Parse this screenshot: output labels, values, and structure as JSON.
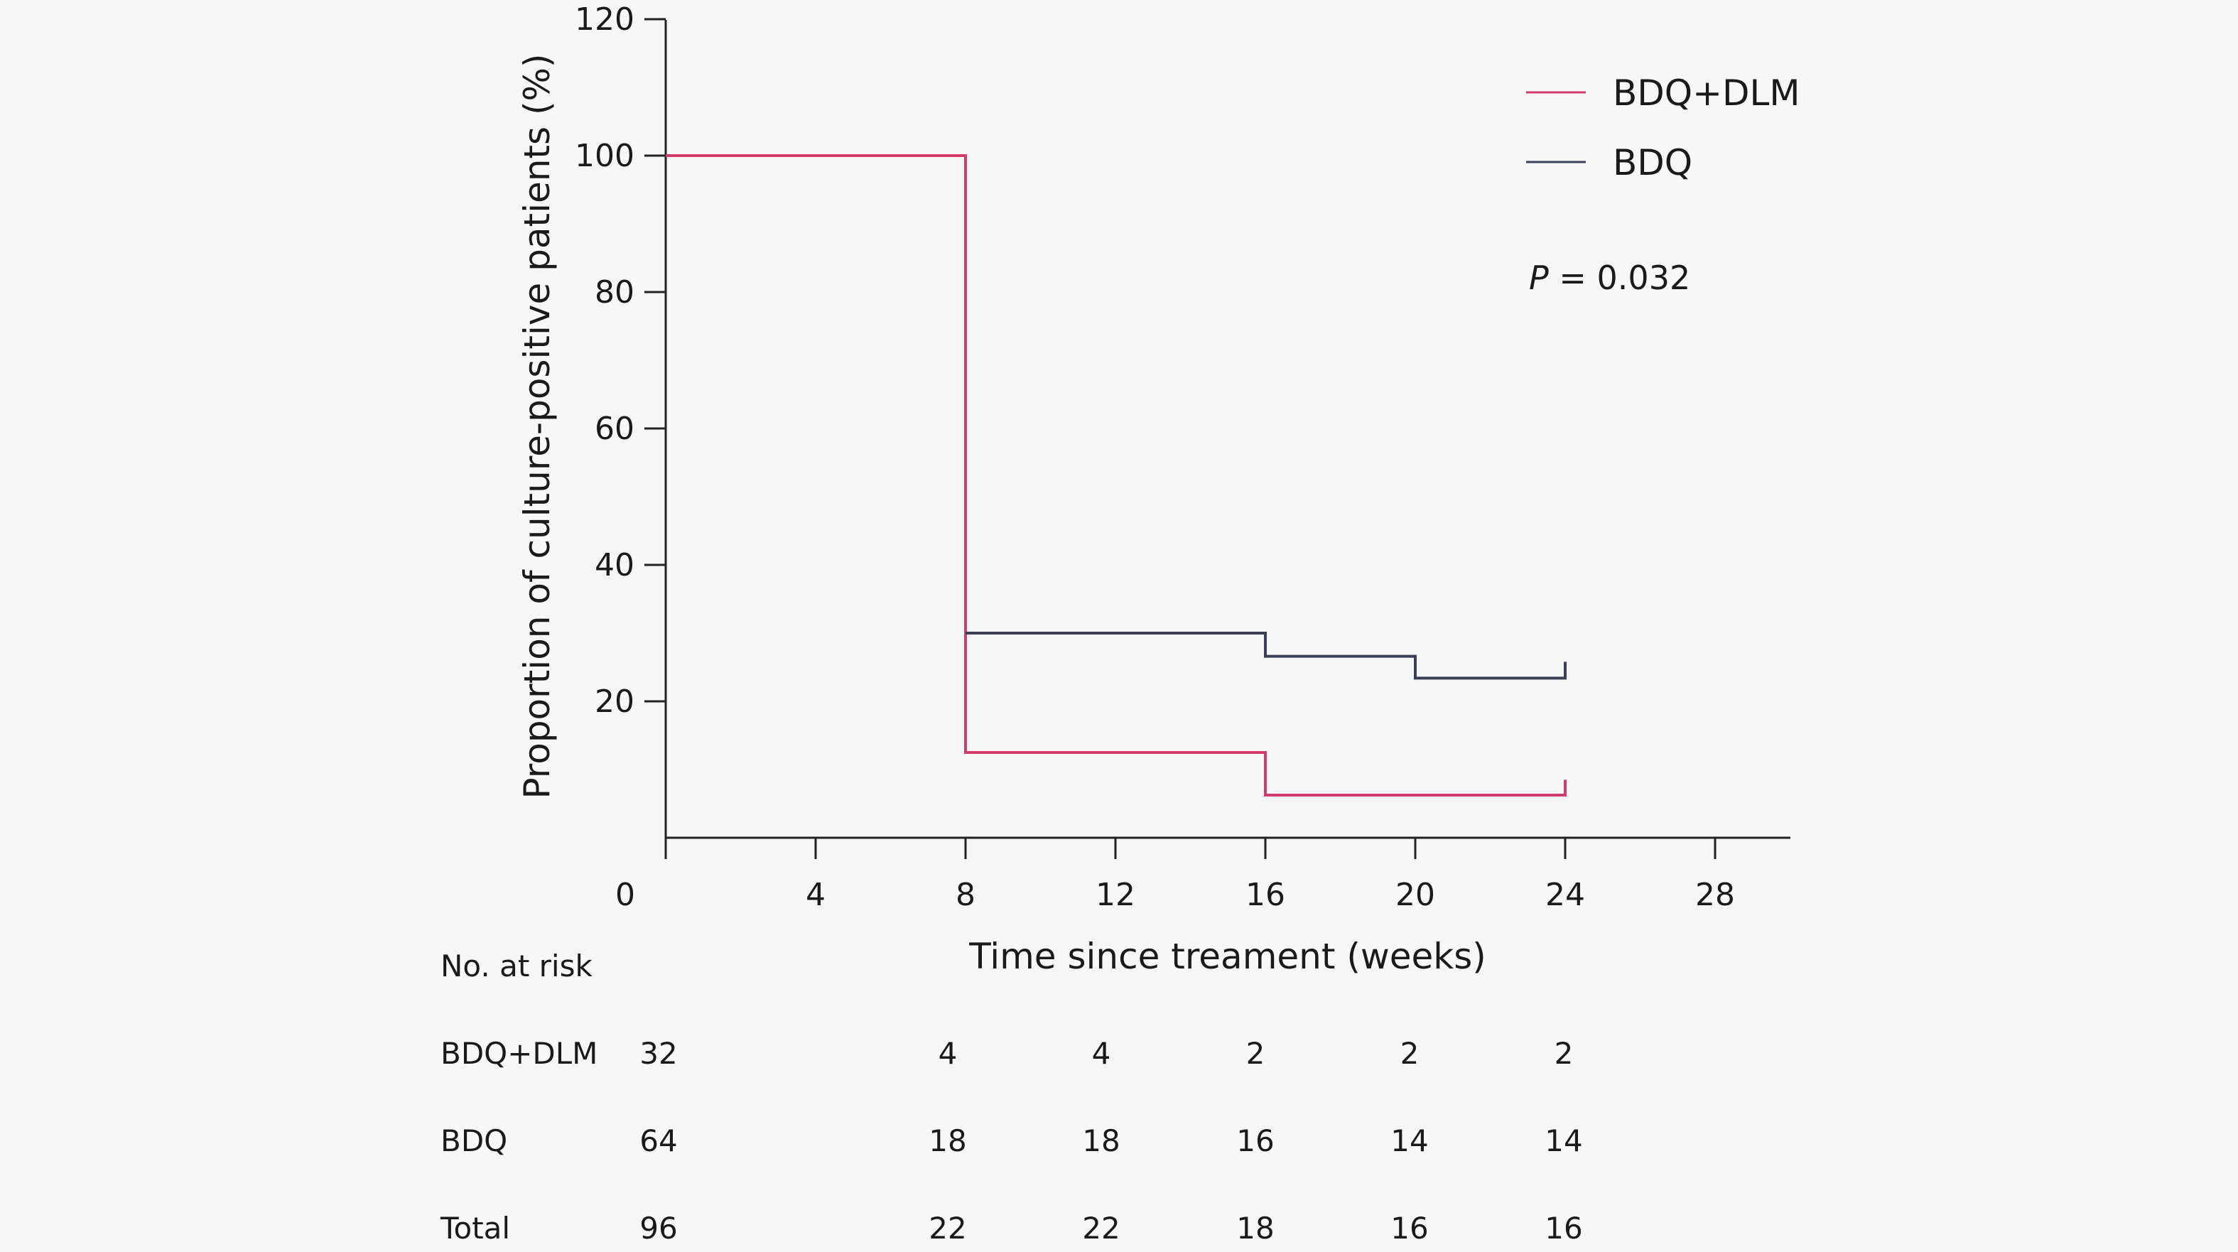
{
  "chart_data": {
    "type": "line",
    "title": "",
    "xlabel": "Time since treament (weeks)",
    "ylabel": "Proportion of culture-positive patients (%)",
    "xlim": [
      0,
      30
    ],
    "ylim": [
      0,
      120
    ],
    "x_ticks": [
      0,
      4,
      8,
      12,
      16,
      20,
      24,
      28
    ],
    "y_ticks": [
      20,
      40,
      60,
      80,
      100,
      120
    ],
    "grid": false,
    "legend_position": "top-right",
    "series": [
      {
        "name": "BDQ+DLM",
        "color": "#d23c6a",
        "step_x": [
          0,
          8,
          8,
          16,
          16,
          24,
          24
        ],
        "step_y": [
          100,
          100,
          12.5,
          12.5,
          6.25,
          6.25,
          8.5
        ]
      },
      {
        "name": "BDQ",
        "color": "#3a3f55",
        "step_x": [
          8,
          16,
          16,
          20,
          20,
          24,
          24
        ],
        "step_y": [
          30,
          30,
          26.6,
          26.6,
          23.4,
          23.4,
          25.8
        ]
      }
    ],
    "annotation": {
      "prefix": "P",
      "text": " = 0.032"
    },
    "risk_table": {
      "title": "No. at risk",
      "times": [
        0,
        8,
        12,
        16,
        20,
        24
      ],
      "rows": [
        {
          "label": "BDQ+DLM",
          "values": [
            "32",
            "4",
            "4",
            "2",
            "2",
            "2"
          ]
        },
        {
          "label": "BDQ",
          "values": [
            "64",
            "18",
            "18",
            "16",
            "14",
            "14"
          ]
        },
        {
          "label": "Total",
          "values": [
            "96",
            "22",
            "22",
            "18",
            "16",
            "16"
          ]
        }
      ]
    }
  }
}
